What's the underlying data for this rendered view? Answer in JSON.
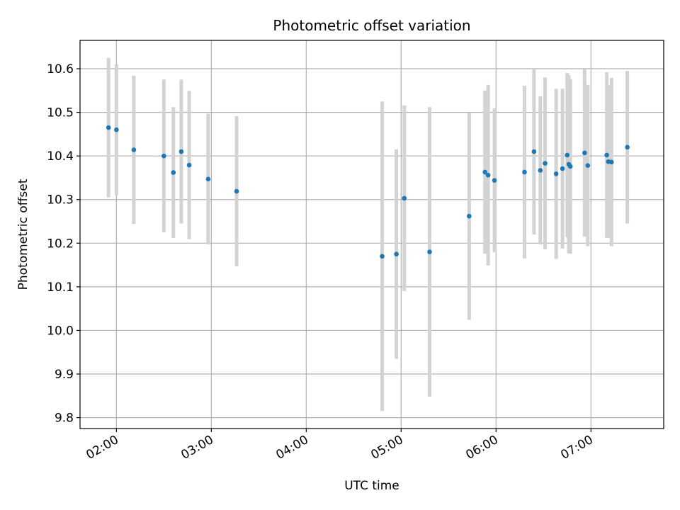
{
  "chart_data": {
    "type": "scatter",
    "title": "Photometric offset variation",
    "xlabel": "UTC time",
    "ylabel": "Photometric offset",
    "x_ticks": [
      "02:00",
      "03:00",
      "04:00",
      "05:00",
      "06:00",
      "07:00"
    ],
    "y_ticks": [
      "9.8",
      "9.9",
      "10.0",
      "10.1",
      "10.2",
      "10.3",
      "10.4",
      "10.5",
      "10.6"
    ],
    "xlim": [
      "01:37",
      "07:46"
    ],
    "ylim": [
      9.775,
      10.665
    ],
    "grid": true,
    "point_color": "#1f77b4",
    "errorbar_color": "#d3d3d3",
    "series": [
      {
        "points": [
          {
            "x": "01:55",
            "y": 10.465,
            "err": 0.16
          },
          {
            "x": "02:00",
            "y": 10.46,
            "err": 0.15
          },
          {
            "x": "02:11",
            "y": 10.414,
            "err": 0.17
          },
          {
            "x": "02:30",
            "y": 10.4,
            "err": 0.175
          },
          {
            "x": "02:36",
            "y": 10.362,
            "err": 0.15
          },
          {
            "x": "02:41",
            "y": 10.41,
            "err": 0.165
          },
          {
            "x": "02:46",
            "y": 10.379,
            "err": 0.17
          },
          {
            "x": "02:58",
            "y": 10.347,
            "err": 0.15
          },
          {
            "x": "03:16",
            "y": 10.319,
            "err": 0.172
          },
          {
            "x": "04:48",
            "y": 10.17,
            "err": 0.355
          },
          {
            "x": "04:57",
            "y": 10.175,
            "err": 0.24
          },
          {
            "x": "05:02",
            "y": 10.303,
            "err": 0.213
          },
          {
            "x": "05:18",
            "y": 10.18,
            "err": 0.332
          },
          {
            "x": "05:43",
            "y": 10.262,
            "err": 0.238
          },
          {
            "x": "05:53",
            "y": 10.363,
            "err": 0.187
          },
          {
            "x": "05:55",
            "y": 10.356,
            "err": 0.207
          },
          {
            "x": "05:59",
            "y": 10.344,
            "err": 0.165
          },
          {
            "x": "06:18",
            "y": 10.363,
            "err": 0.198
          },
          {
            "x": "06:24",
            "y": 10.41,
            "err": 0.19
          },
          {
            "x": "06:28",
            "y": 10.367,
            "err": 0.17
          },
          {
            "x": "06:31",
            "y": 10.383,
            "err": 0.197
          },
          {
            "x": "06:38",
            "y": 10.359,
            "err": 0.195
          },
          {
            "x": "06:42",
            "y": 10.371,
            "err": 0.183
          },
          {
            "x": "06:45",
            "y": 10.402,
            "err": 0.188
          },
          {
            "x": "06:46",
            "y": 10.381,
            "err": 0.204
          },
          {
            "x": "06:47",
            "y": 10.376,
            "err": 0.2
          },
          {
            "x": "06:56",
            "y": 10.407,
            "err": 0.192
          },
          {
            "x": "06:58",
            "y": 10.378,
            "err": 0.185
          },
          {
            "x": "07:10",
            "y": 10.402,
            "err": 0.19
          },
          {
            "x": "07:11",
            "y": 10.387,
            "err": 0.175
          },
          {
            "x": "07:13",
            "y": 10.386,
            "err": 0.193
          },
          {
            "x": "07:23",
            "y": 10.42,
            "err": 0.175
          }
        ]
      }
    ]
  }
}
